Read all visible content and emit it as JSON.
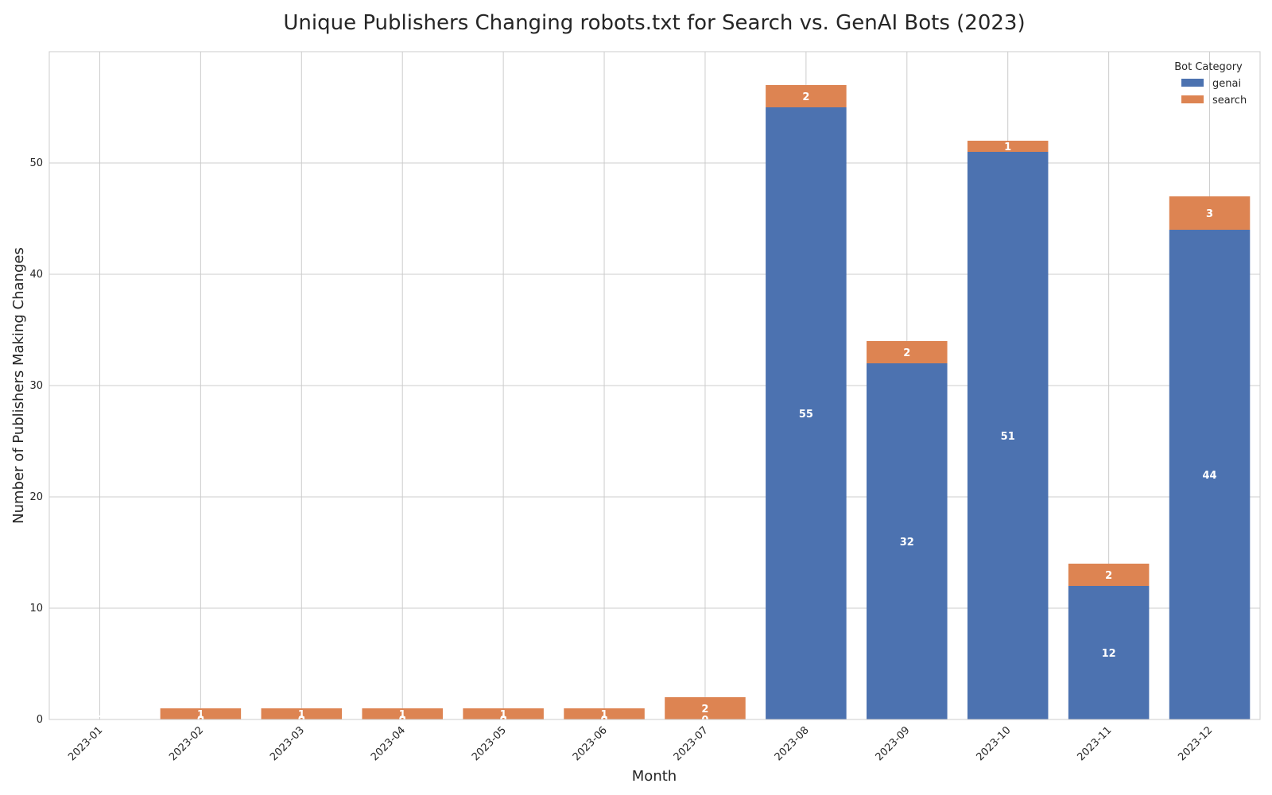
{
  "chart_data": {
    "type": "bar",
    "stacked": true,
    "title": "Unique Publishers Changing robots.txt for Search vs. GenAI Bots (2023)",
    "xlabel": "Month",
    "ylabel": "Number of Publishers Making Changes",
    "categories": [
      "2023-01",
      "2023-02",
      "2023-03",
      "2023-04",
      "2023-05",
      "2023-06",
      "2023-07",
      "2023-08",
      "2023-09",
      "2023-10",
      "2023-11",
      "2023-12"
    ],
    "series": [
      {
        "name": "genai",
        "color": "#4c72b0",
        "values": [
          0,
          0,
          0,
          0,
          0,
          0,
          0,
          55,
          32,
          51,
          12,
          44
        ]
      },
      {
        "name": "search",
        "color": "#dd8452",
        "values": [
          0,
          1,
          1,
          1,
          1,
          1,
          2,
          2,
          2,
          1,
          2,
          3
        ]
      }
    ],
    "ylim": [
      0,
      60
    ],
    "yticks": [
      0,
      10,
      20,
      30,
      40,
      50
    ],
    "grid": true,
    "legend": {
      "title": "Bot Category",
      "position": "top-right"
    }
  }
}
